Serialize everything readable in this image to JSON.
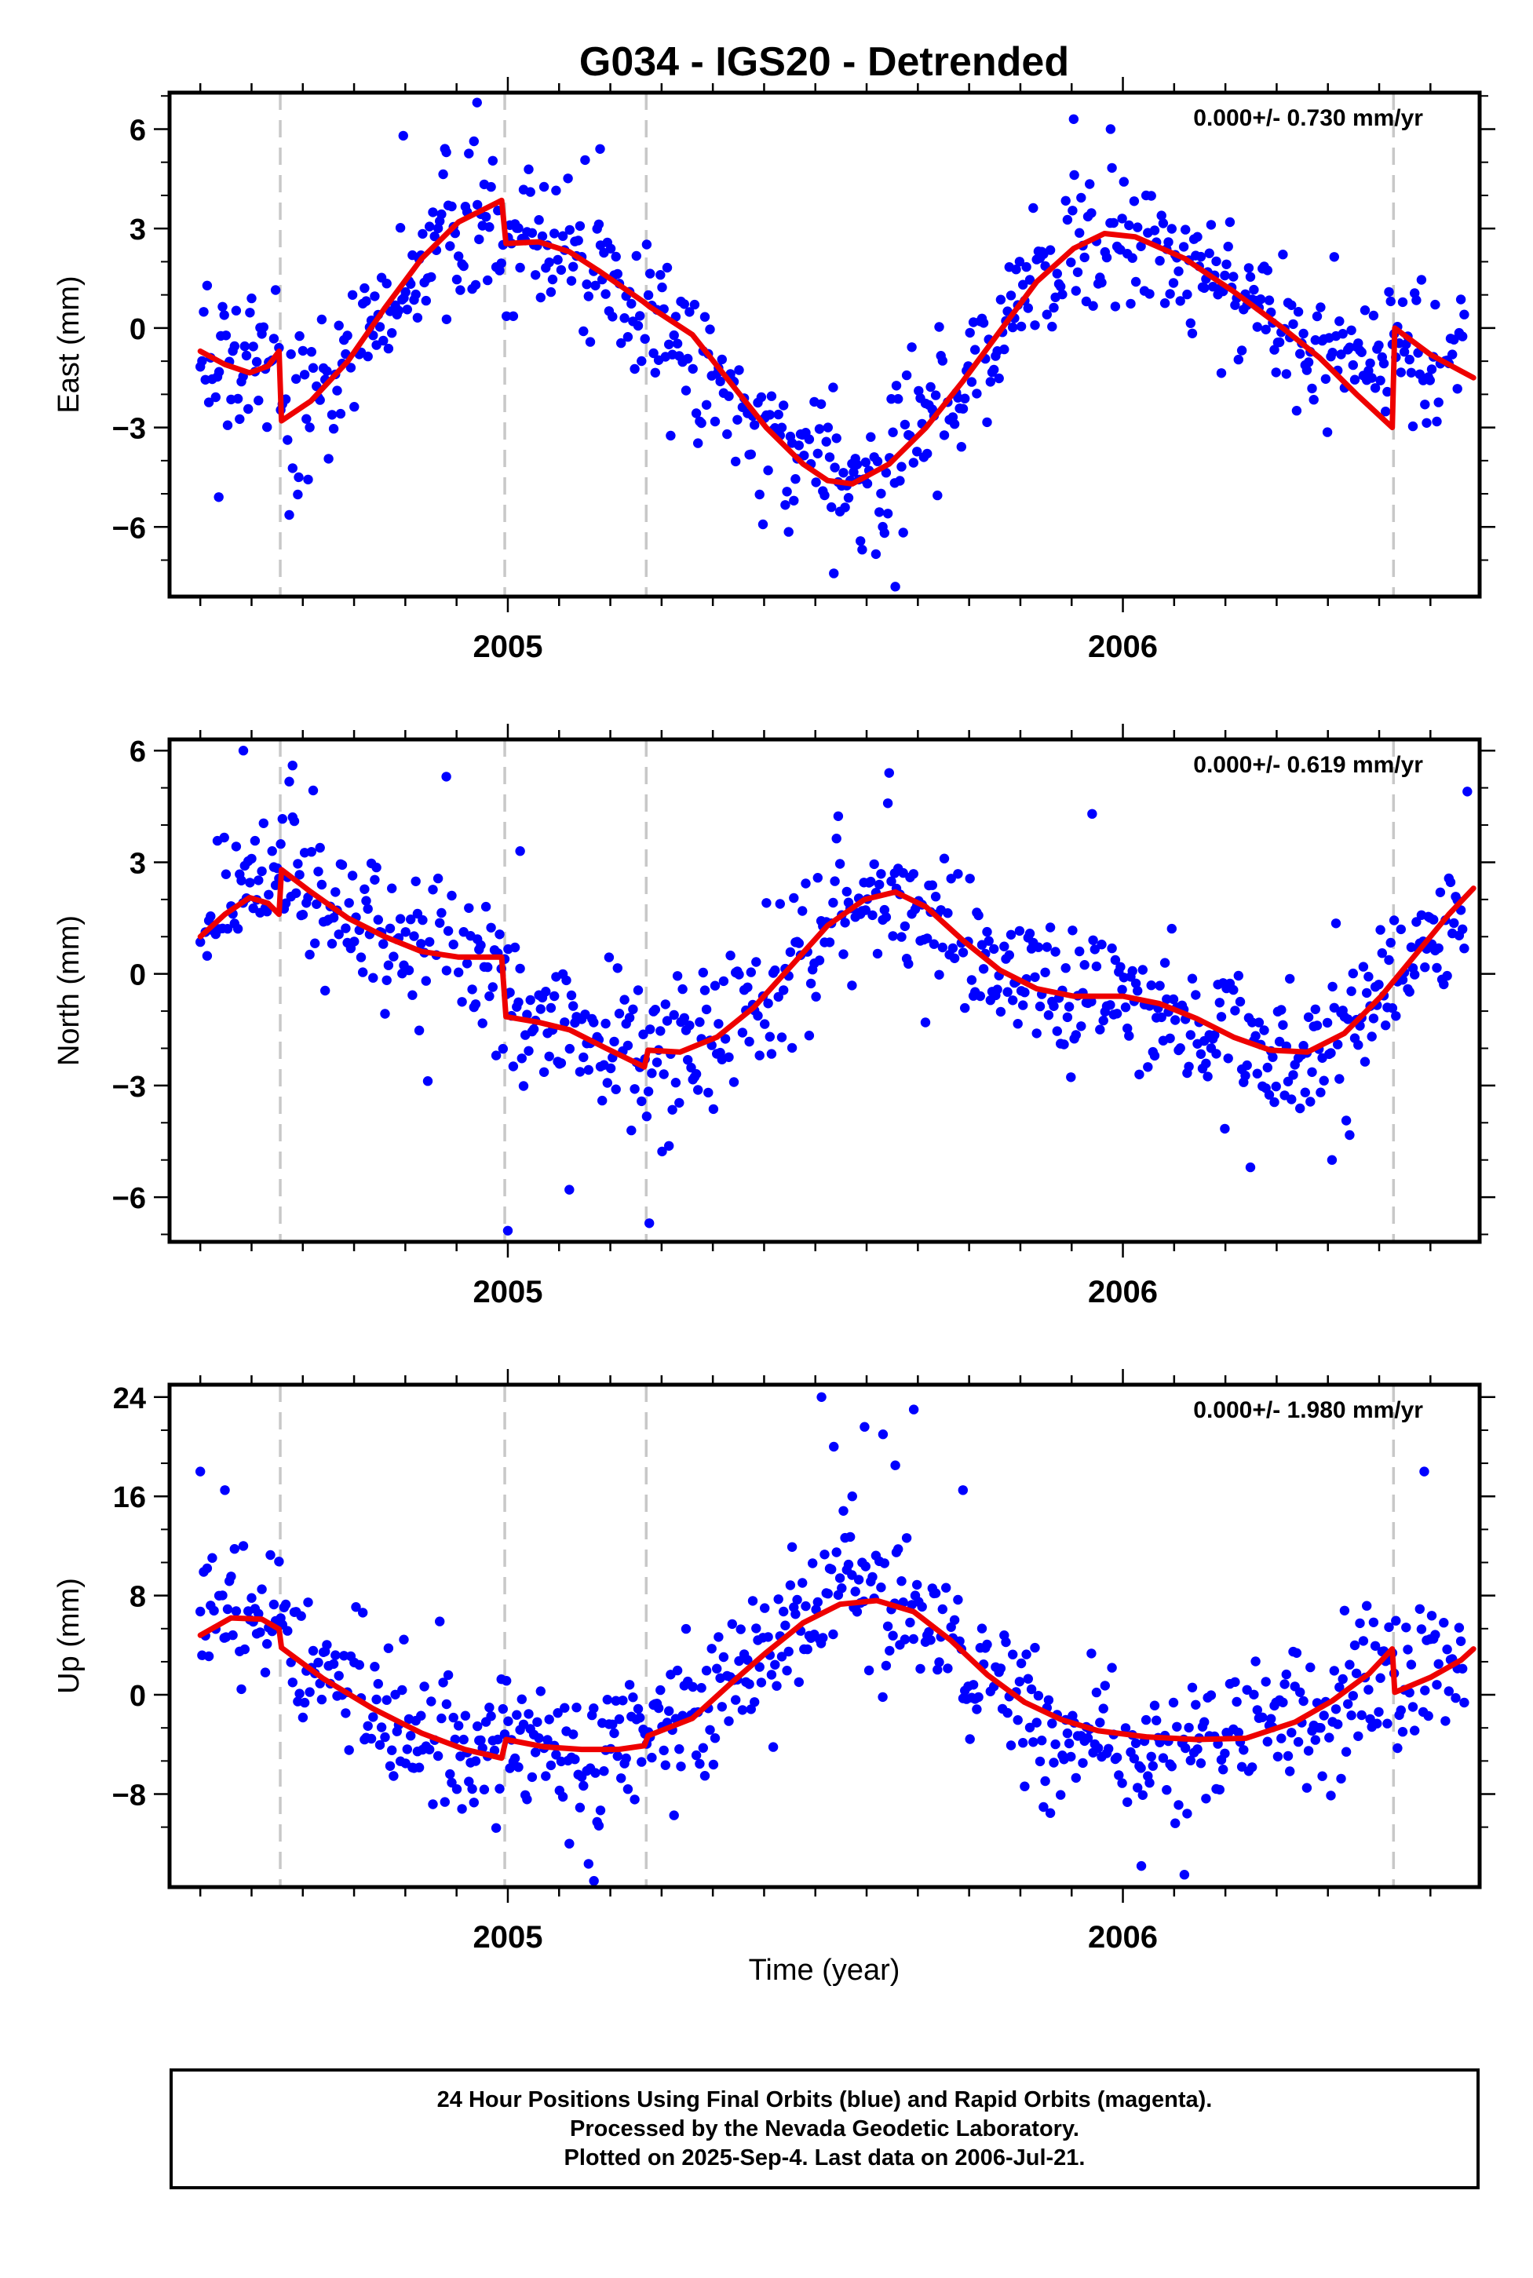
{
  "title": "G034 - IGS20 - Detrended",
  "xlabel": "Time (year)",
  "colors": {
    "final": "#0000ff",
    "model": "#ee0000",
    "break": "#c8c8c8",
    "axis": "#000000"
  },
  "footer": {
    "line1": "24 Hour Positions Using Final Orbits (blue) and Rapid Orbits (magenta).",
    "line2": "Processed by the Nevada Geodetic Laboratory.",
    "line3": "Plotted on 2025-Sep-4. Last data on 2006-Jul-21."
  },
  "chart_data": [
    {
      "type": "scatter",
      "component": "east",
      "ylabel": "East (mm)",
      "rate": "0.000+/- 0.730 mm/yr",
      "xlim": [
        2004.45,
        2006.58
      ],
      "ylim": [
        -8.1,
        7.1
      ],
      "yticks": [
        -6,
        -3,
        0,
        3,
        6
      ],
      "xticks": [
        2005,
        2006
      ],
      "breaks": [
        2004.63,
        2004.995,
        2005.225,
        2006.44
      ],
      "model": [
        [
          2004.5,
          -0.7
        ],
        [
          2004.54,
          -1.1
        ],
        [
          2004.58,
          -1.35
        ],
        [
          2004.61,
          -1.15
        ],
        [
          2004.628,
          -0.7
        ],
        [
          2004.632,
          -2.8
        ],
        [
          2004.68,
          -2.2
        ],
        [
          2004.74,
          -1.0
        ],
        [
          2004.8,
          0.6
        ],
        [
          2004.86,
          2.1
        ],
        [
          2004.92,
          3.2
        ],
        [
          2004.99,
          3.85
        ],
        [
          2004.997,
          2.55
        ],
        [
          2005.05,
          2.6
        ],
        [
          2005.1,
          2.3
        ],
        [
          2005.15,
          1.7
        ],
        [
          2005.22,
          0.8
        ],
        [
          2005.23,
          0.65
        ],
        [
          2005.3,
          -0.2
        ],
        [
          2005.36,
          -1.6
        ],
        [
          2005.42,
          -3.0
        ],
        [
          2005.48,
          -4.1
        ],
        [
          2005.52,
          -4.6
        ],
        [
          2005.56,
          -4.7
        ],
        [
          2005.62,
          -4.1
        ],
        [
          2005.68,
          -3.0
        ],
        [
          2005.74,
          -1.6
        ],
        [
          2005.8,
          -0.1
        ],
        [
          2005.86,
          1.4
        ],
        [
          2005.92,
          2.4
        ],
        [
          2005.97,
          2.85
        ],
        [
          2006.02,
          2.75
        ],
        [
          2006.1,
          2.1
        ],
        [
          2006.18,
          1.1
        ],
        [
          2006.26,
          0.0
        ],
        [
          2006.32,
          -0.9
        ],
        [
          2006.38,
          -2.0
        ],
        [
          2006.438,
          -3.0
        ],
        [
          2006.442,
          0.0
        ],
        [
          2006.5,
          -0.8
        ],
        [
          2006.55,
          -1.3
        ],
        [
          2006.57,
          -1.5
        ]
      ],
      "centers": [
        [
          2004.5,
          -0.5
        ],
        [
          2004.55,
          -1.3
        ],
        [
          2004.6,
          -1.1
        ],
        [
          2004.63,
          -0.9
        ],
        [
          2004.64,
          -2.8
        ],
        [
          2004.7,
          -1.9
        ],
        [
          2004.76,
          -0.4
        ],
        [
          2004.82,
          1.1
        ],
        [
          2004.88,
          2.5
        ],
        [
          2004.95,
          3.5
        ],
        [
          2005.0,
          2.5
        ],
        [
          2005.08,
          2.4
        ],
        [
          2005.16,
          1.6
        ],
        [
          2005.24,
          0.4
        ],
        [
          2005.3,
          -0.7
        ],
        [
          2005.38,
          -2.4
        ],
        [
          2005.46,
          -3.7
        ],
        [
          2005.53,
          -4.6
        ],
        [
          2005.58,
          -4.5
        ],
        [
          2005.64,
          -3.7
        ],
        [
          2005.7,
          -2.5
        ],
        [
          2005.76,
          -1.0
        ],
        [
          2005.82,
          0.6
        ],
        [
          2005.88,
          1.8
        ],
        [
          2005.95,
          2.7
        ],
        [
          2006.02,
          2.8
        ],
        [
          2006.1,
          2.2
        ],
        [
          2006.18,
          1.1
        ],
        [
          2006.26,
          0.0
        ],
        [
          2006.34,
          -1.0
        ],
        [
          2006.44,
          -0.5
        ],
        [
          2006.5,
          -0.8
        ],
        [
          2006.57,
          -1.4
        ]
      ],
      "noise": 1.1,
      "outliers": [
        [
          2004.83,
          5.8
        ],
        [
          2004.9,
          5.3
        ],
        [
          2004.95,
          6.8
        ],
        [
          2005.15,
          5.4
        ],
        [
          2005.53,
          -7.4
        ],
        [
          2005.63,
          -7.8
        ],
        [
          2005.92,
          6.3
        ],
        [
          2005.98,
          6.0
        ],
        [
          2004.53,
          -5.1
        ],
        [
          2004.66,
          -4.5
        ]
      ]
    },
    {
      "type": "scatter",
      "component": "north",
      "ylabel": "North (mm)",
      "rate": "0.000+/- 0.619 mm/yr",
      "xlim": [
        2004.45,
        2006.58
      ],
      "ylim": [
        -7.2,
        6.3
      ],
      "yticks": [
        -6,
        -3,
        0,
        3,
        6
      ],
      "xticks": [
        2005,
        2006
      ],
      "breaks": [
        2004.63,
        2004.995,
        2005.225,
        2006.44
      ],
      "model": [
        [
          2004.5,
          1.0
        ],
        [
          2004.54,
          1.6
        ],
        [
          2004.58,
          2.05
        ],
        [
          2004.61,
          1.9
        ],
        [
          2004.628,
          1.6
        ],
        [
          2004.632,
          2.8
        ],
        [
          2004.68,
          2.2
        ],
        [
          2004.74,
          1.5
        ],
        [
          2004.8,
          1.0
        ],
        [
          2004.86,
          0.6
        ],
        [
          2004.92,
          0.45
        ],
        [
          2004.99,
          0.45
        ],
        [
          2004.997,
          -1.15
        ],
        [
          2005.05,
          -1.3
        ],
        [
          2005.1,
          -1.5
        ],
        [
          2005.16,
          -2.0
        ],
        [
          2005.222,
          -2.5
        ],
        [
          2005.228,
          -2.05
        ],
        [
          2005.28,
          -2.1
        ],
        [
          2005.34,
          -1.7
        ],
        [
          2005.4,
          -0.9
        ],
        [
          2005.46,
          0.2
        ],
        [
          2005.52,
          1.3
        ],
        [
          2005.58,
          2.0
        ],
        [
          2005.63,
          2.2
        ],
        [
          2005.68,
          1.8
        ],
        [
          2005.74,
          0.9
        ],
        [
          2005.8,
          0.1
        ],
        [
          2005.86,
          -0.4
        ],
        [
          2005.92,
          -0.6
        ],
        [
          2006.0,
          -0.6
        ],
        [
          2006.06,
          -0.8
        ],
        [
          2006.12,
          -1.2
        ],
        [
          2006.18,
          -1.7
        ],
        [
          2006.24,
          -2.05
        ],
        [
          2006.3,
          -2.1
        ],
        [
          2006.36,
          -1.6
        ],
        [
          2006.42,
          -0.6
        ],
        [
          2006.48,
          0.6
        ],
        [
          2006.53,
          1.6
        ],
        [
          2006.57,
          2.3
        ]
      ],
      "centers": [
        [
          2004.5,
          1.0
        ],
        [
          2004.56,
          2.2
        ],
        [
          2004.62,
          2.1
        ],
        [
          2004.66,
          2.9
        ],
        [
          2004.72,
          1.8
        ],
        [
          2004.8,
          0.9
        ],
        [
          2004.88,
          0.5
        ],
        [
          2004.96,
          0.5
        ],
        [
          2005.02,
          -1.3
        ],
        [
          2005.1,
          -1.5
        ],
        [
          2005.18,
          -2.2
        ],
        [
          2005.26,
          -2.3
        ],
        [
          2005.34,
          -1.7
        ],
        [
          2005.42,
          -0.6
        ],
        [
          2005.5,
          0.9
        ],
        [
          2005.58,
          2.0
        ],
        [
          2005.64,
          2.1
        ],
        [
          2005.7,
          1.6
        ],
        [
          2005.78,
          0.4
        ],
        [
          2005.86,
          -0.4
        ],
        [
          2005.94,
          -0.6
        ],
        [
          2006.02,
          -0.7
        ],
        [
          2006.1,
          -1.2
        ],
        [
          2006.2,
          -1.9
        ],
        [
          2006.3,
          -2.1
        ],
        [
          2006.38,
          -1.2
        ],
        [
          2006.46,
          0.4
        ],
        [
          2006.52,
          1.6
        ],
        [
          2006.57,
          2.4
        ]
      ],
      "noise": 1.0,
      "outliers": [
        [
          2004.57,
          6.0
        ],
        [
          2004.65,
          5.6
        ],
        [
          2004.9,
          5.3
        ],
        [
          2005.02,
          3.3
        ],
        [
          2005.1,
          -5.8
        ],
        [
          2005.0,
          -6.9
        ],
        [
          2005.23,
          -6.7
        ],
        [
          2005.62,
          5.4
        ],
        [
          2005.95,
          4.3
        ],
        [
          2006.34,
          -5.0
        ],
        [
          2006.56,
          4.9
        ]
      ]
    },
    {
      "type": "scatter",
      "component": "up",
      "ylabel": "Up (mm)",
      "rate": "0.000+/- 1.980 mm/yr",
      "xlim": [
        2004.45,
        2006.58
      ],
      "ylim": [
        -15.5,
        25.0
      ],
      "yticks": [
        -8,
        0,
        8,
        16,
        24
      ],
      "xticks": [
        2005,
        2006
      ],
      "breaks": [
        2004.63,
        2004.995,
        2005.225,
        2006.44
      ],
      "model": [
        [
          2004.5,
          4.8
        ],
        [
          2004.55,
          6.2
        ],
        [
          2004.6,
          6.1
        ],
        [
          2004.628,
          5.3
        ],
        [
          2004.632,
          3.8
        ],
        [
          2004.7,
          1.3
        ],
        [
          2004.78,
          -1.1
        ],
        [
          2004.86,
          -3.1
        ],
        [
          2004.93,
          -4.4
        ],
        [
          2004.99,
          -5.1
        ],
        [
          2004.997,
          -3.6
        ],
        [
          2005.06,
          -4.2
        ],
        [
          2005.12,
          -4.4
        ],
        [
          2005.18,
          -4.4
        ],
        [
          2005.222,
          -4.1
        ],
        [
          2005.228,
          -3.3
        ],
        [
          2005.3,
          -1.9
        ],
        [
          2005.36,
          0.8
        ],
        [
          2005.42,
          3.4
        ],
        [
          2005.48,
          5.8
        ],
        [
          2005.54,
          7.3
        ],
        [
          2005.6,
          7.6
        ],
        [
          2005.66,
          6.7
        ],
        [
          2005.72,
          4.4
        ],
        [
          2005.78,
          1.6
        ],
        [
          2005.84,
          -0.6
        ],
        [
          2005.9,
          -2.0
        ],
        [
          2005.96,
          -2.9
        ],
        [
          2006.04,
          -3.4
        ],
        [
          2006.12,
          -3.6
        ],
        [
          2006.2,
          -3.5
        ],
        [
          2006.28,
          -2.2
        ],
        [
          2006.34,
          -0.5
        ],
        [
          2006.4,
          1.7
        ],
        [
          2006.438,
          3.7
        ],
        [
          2006.442,
          0.2
        ],
        [
          2006.5,
          1.4
        ],
        [
          2006.55,
          2.8
        ],
        [
          2006.57,
          3.7
        ]
      ],
      "centers": [
        [
          2004.5,
          6.0
        ],
        [
          2004.56,
          6.3
        ],
        [
          2004.61,
          5.6
        ],
        [
          2004.65,
          4.0
        ],
        [
          2004.72,
          1.2
        ],
        [
          2004.8,
          -1.5
        ],
        [
          2004.88,
          -3.4
        ],
        [
          2004.96,
          -4.8
        ],
        [
          2005.02,
          -3.9
        ],
        [
          2005.1,
          -4.7
        ],
        [
          2005.16,
          -5.0
        ],
        [
          2005.24,
          -2.9
        ],
        [
          2005.32,
          -0.8
        ],
        [
          2005.4,
          2.4
        ],
        [
          2005.48,
          5.2
        ],
        [
          2005.54,
          9.5
        ],
        [
          2005.6,
          8.3
        ],
        [
          2005.66,
          6.3
        ],
        [
          2005.72,
          3.6
        ],
        [
          2005.8,
          0.3
        ],
        [
          2005.88,
          -2.8
        ],
        [
          2005.96,
          -4.0
        ],
        [
          2006.04,
          -4.6
        ],
        [
          2006.12,
          -4.0
        ],
        [
          2006.2,
          -2.5
        ],
        [
          2006.28,
          -1.5
        ],
        [
          2006.36,
          -0.4
        ],
        [
          2006.46,
          2.0
        ],
        [
          2006.52,
          2.8
        ],
        [
          2006.57,
          3.0
        ]
      ],
      "noise": 2.8,
      "outliers": [
        [
          2004.5,
          18.0
        ],
        [
          2004.54,
          16.5
        ],
        [
          2004.57,
          12.0
        ],
        [
          2005.51,
          24.0
        ],
        [
          2005.53,
          20.0
        ],
        [
          2005.58,
          21.6
        ],
        [
          2005.61,
          21.0
        ],
        [
          2005.63,
          18.5
        ],
        [
          2005.66,
          23.0
        ],
        [
          2005.74,
          16.5
        ],
        [
          2005.56,
          16.0
        ],
        [
          2006.49,
          18.0
        ],
        [
          2005.14,
          -15.0
        ],
        [
          2006.03,
          -13.8
        ],
        [
          2006.1,
          -14.5
        ],
        [
          2005.1,
          -12.0
        ]
      ]
    }
  ]
}
